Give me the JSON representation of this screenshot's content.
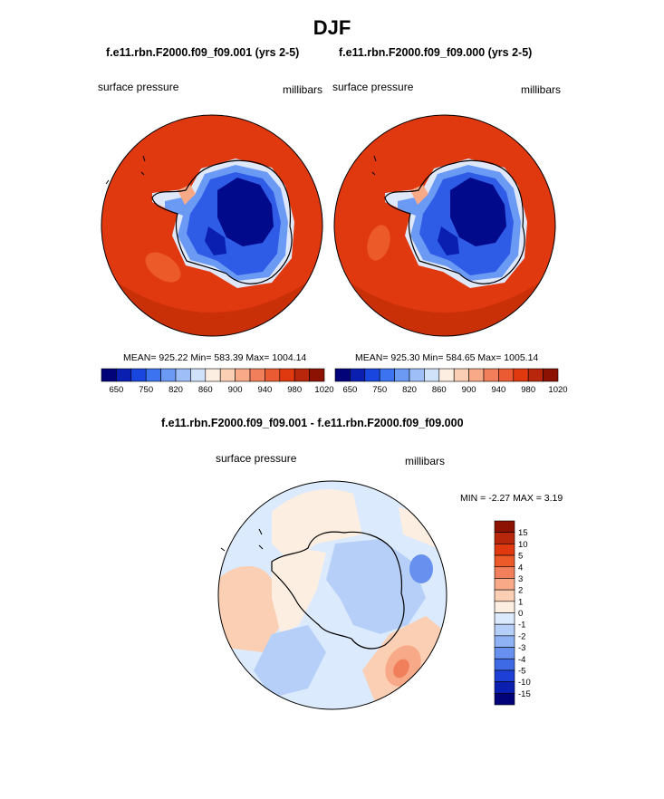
{
  "page_title": "DJF",
  "chart_data": [
    {
      "type": "heatmap",
      "title": "f.e11.rbn.F2000.f09_f09.001 (yrs 2-5)",
      "left_label": "surface pressure",
      "right_label": "millibars",
      "mean": "925.22",
      "min": "583.39",
      "max": "1004.14",
      "stats_text": "MEAN= 925.22  Min= 583.39  Max= 1004.14",
      "colorbar_ticks": [
        "650",
        "750",
        "820",
        "860",
        "900",
        "940",
        "980",
        "1020"
      ]
    },
    {
      "type": "heatmap",
      "title": "f.e11.rbn.F2000.f09_f09.000 (yrs 2-5)",
      "left_label": "surface pressure",
      "right_label": "millibars",
      "mean": "925.30",
      "min": "584.65",
      "max": "1005.14",
      "stats_text": "MEAN= 925.30  Min= 584.65  Max= 1005.14",
      "colorbar_ticks": [
        "650",
        "750",
        "820",
        "860",
        "900",
        "940",
        "980",
        "1020"
      ]
    },
    {
      "type": "heatmap",
      "title": "f.e11.rbn.F2000.f09_f09.001 - f.e11.rbn.F2000.f09_f09.000",
      "left_label": "surface pressure",
      "right_label": "millibars",
      "min": "-2.27",
      "max": "3.19",
      "stats_text": "MIN =  -2.27 MAX =   3.19",
      "colorbar_ticks": [
        "15",
        "10",
        "5",
        "4",
        "3",
        "2",
        "1",
        "0",
        "-1",
        "-2",
        "-3",
        "-4",
        "-5",
        "-10",
        "-15"
      ]
    }
  ],
  "colors": {
    "ocean": "#e0380f",
    "ocean_edge": "#b52a0a",
    "interior_dark": "#020a8c",
    "interior_mid": "#1f3ad6",
    "interior_light": "#4f7df0",
    "horizontal_bar": [
      "#020378",
      "#0a1fb0",
      "#1a46e0",
      "#3c73f0",
      "#6b9af5",
      "#9dbef7",
      "#cfe2fa",
      "#fdeee2",
      "#fbcfb3",
      "#f7a988",
      "#f27f5c",
      "#ea5a33",
      "#e0380f",
      "#b8260b",
      "#8c1203"
    ],
    "vertical_bar": [
      "#8c1203",
      "#b8260b",
      "#e0380f",
      "#ec5a2a",
      "#f27f5c",
      "#f7a988",
      "#fbcfb3",
      "#fdeee2",
      "#dbeafc",
      "#b6cff8",
      "#8fb2f4",
      "#6891ef",
      "#3f6ae6",
      "#1e3fd6",
      "#0a1fb0",
      "#020378"
    ]
  }
}
